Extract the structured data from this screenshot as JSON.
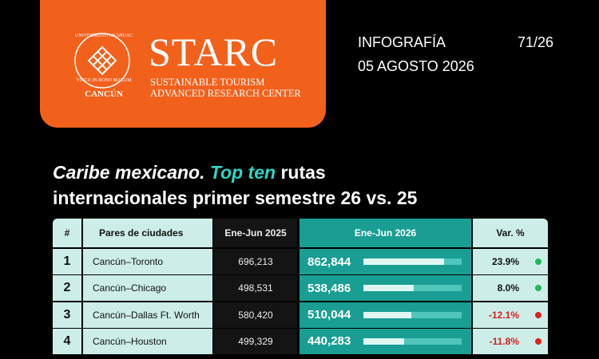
{
  "header": {
    "university": "UNIVERSIDAD ANÁHUAC",
    "motto": "VINCE IN BONO MALUM",
    "campus": "CANCÚN",
    "brand": "STARC",
    "brand_line1": "SUSTAINABLE TOURISM",
    "brand_line2": "ADVANCED RESEARCH CENTER",
    "kind": "INFOGRAFÍA",
    "number": "71/26",
    "date": "05 AGOSTO 2026"
  },
  "title": {
    "part1": "Caribe mexicano.",
    "part2": "Top ten",
    "part3": "rutas",
    "line2": "internacionales primer semestre 26 vs. 25"
  },
  "table": {
    "columns": [
      "#",
      "Pares de ciudades",
      "Ene-Jun 2025",
      "Ene-Jun 2026",
      "Var. %"
    ],
    "rows": [
      {
        "rank": "1",
        "route": "Cancún–Toronto",
        "y2025": "696,213",
        "y2026": {
          "value": 862844,
          "label": "862,844"
        },
        "var": {
          "value": 23.9,
          "label": "23.9%"
        }
      },
      {
        "rank": "2",
        "route": "Cancún–Chicago",
        "y2025": "498,531",
        "y2026": {
          "value": 538486,
          "label": "538,486"
        },
        "var": {
          "value": 8.0,
          "label": "8.0%"
        }
      },
      {
        "rank": "3",
        "route": "Cancún–Dallas Ft. Worth",
        "y2025": "580,420",
        "y2026": {
          "value": 510044,
          "label": "510,044"
        },
        "var": {
          "value": -12.1,
          "label": "-12.1%"
        }
      },
      {
        "rank": "4",
        "route": "Cancún–Houston",
        "y2025": "499,329",
        "y2026": {
          "value": 440283,
          "label": "440,283"
        },
        "var": {
          "value": -11.8,
          "label": "-11.8%"
        }
      }
    ]
  }
}
